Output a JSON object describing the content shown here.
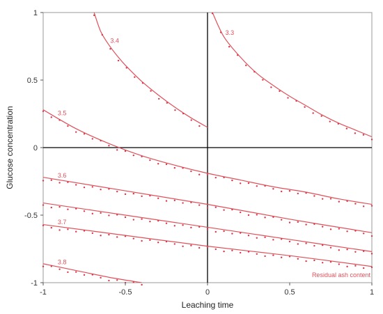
{
  "chart_data": {
    "type": "contour",
    "xlabel": "Leaching time",
    "ylabel": "Glucose concentration",
    "xlim": [
      -1,
      1
    ],
    "ylim": [
      -1,
      1
    ],
    "x_ticks": [
      "-1",
      "-0.5",
      "0",
      "0.5",
      "1"
    ],
    "y_ticks": [
      "-1",
      "-0.5",
      "0",
      "0.5",
      "1"
    ],
    "reference_lines": {
      "x": 0,
      "y": 0
    },
    "annotation": "Residual ash content",
    "series": [
      {
        "name": "3.3",
        "x": [
          0.03,
          0.1,
          0.2,
          0.3,
          0.4,
          0.5,
          0.6,
          0.7,
          0.8,
          0.9,
          1.0
        ],
        "y": [
          1.0,
          0.82,
          0.67,
          0.55,
          0.46,
          0.38,
          0.31,
          0.24,
          0.18,
          0.13,
          0.08
        ]
      },
      {
        "name": "3.4",
        "x": [
          -0.69,
          -0.65,
          -0.6,
          -0.55,
          -0.5,
          -0.4,
          -0.3,
          -0.2,
          -0.1,
          0.0
        ],
        "y": [
          1.0,
          0.86,
          0.76,
          0.68,
          0.61,
          0.49,
          0.39,
          0.3,
          0.22,
          0.15
        ]
      },
      {
        "name": "3.5",
        "x": [
          -1.0,
          -0.8,
          -0.6,
          -0.4,
          -0.2,
          0.0,
          0.2,
          0.4,
          0.6,
          0.8,
          1.0
        ],
        "y": [
          0.28,
          0.14,
          0.03,
          -0.06,
          -0.13,
          -0.19,
          -0.24,
          -0.29,
          -0.33,
          -0.38,
          -0.42
        ]
      },
      {
        "name": "3.6",
        "x": [
          -1.0,
          -0.5,
          0.0,
          0.5,
          1.0
        ],
        "y": [
          -0.22,
          -0.32,
          -0.42,
          -0.53,
          -0.63
        ]
      },
      {
        "name": "",
        "x": [
          -1.0,
          -0.5,
          0.0,
          0.5,
          1.0
        ],
        "y": [
          -0.41,
          -0.5,
          -0.59,
          -0.68,
          -0.77
        ]
      },
      {
        "name": "3.7",
        "x": [
          -1.0,
          -0.5,
          0.0,
          0.5,
          1.0
        ],
        "y": [
          -0.57,
          -0.65,
          -0.73,
          -0.8,
          -0.88
        ]
      },
      {
        "name": "3.8",
        "x": [
          -1.0,
          -0.8,
          -0.6,
          -0.4
        ],
        "y": [
          -0.86,
          -0.91,
          -0.96,
          -1.0
        ]
      }
    ],
    "colors": {
      "contour": "#e0505a",
      "points": "#d93848",
      "reference": "#000000",
      "frame": "#999999"
    }
  }
}
